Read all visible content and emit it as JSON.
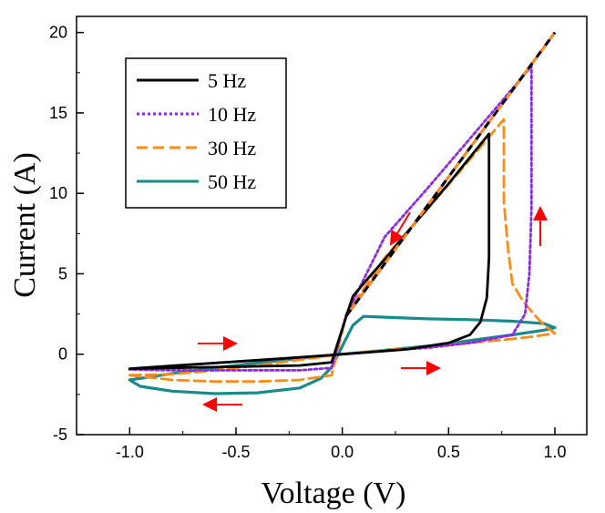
{
  "chart_data": {
    "type": "line",
    "title": "",
    "xlabel": "Voltage (V)",
    "ylabel": "Current (A)",
    "xlim": [
      -1.25,
      1.15
    ],
    "ylim": [
      -5,
      21
    ],
    "xticks": [
      -1.0,
      -0.5,
      0.0,
      0.5,
      1.0
    ],
    "xtick_labels": [
      "-1.0",
      "-0.5",
      "0.0",
      "0.5",
      "1.0"
    ],
    "yticks": [
      -5,
      0,
      5,
      10,
      15,
      20
    ],
    "ytick_labels": [
      "-5",
      "0",
      "5",
      "10",
      "15",
      "20"
    ],
    "grid": false,
    "legend_position": "top-left",
    "series": [
      {
        "name": "5 Hz",
        "color": "#000000",
        "style": "solid",
        "x": [
          -1.0,
          -0.8,
          -0.6,
          -0.4,
          -0.2,
          -0.05,
          0.0,
          0.1,
          0.2,
          0.3,
          0.4,
          0.5,
          0.6,
          0.65,
          0.68,
          0.69,
          0.69,
          0.5,
          0.3,
          0.2,
          0.1,
          0.05,
          0.02,
          -0.05,
          -0.2,
          -0.4,
          -0.6,
          -0.8,
          -1.0
        ],
        "y": [
          -0.9,
          -0.72,
          -0.55,
          -0.37,
          -0.19,
          -0.05,
          0.0,
          0.1,
          0.2,
          0.3,
          0.5,
          0.7,
          1.2,
          2.0,
          3.5,
          6.0,
          13.7,
          10.6,
          7.5,
          5.9,
          4.4,
          3.6,
          2.4,
          -0.5,
          -0.7,
          -0.75,
          -0.8,
          -0.85,
          -0.9
        ]
      },
      {
        "name": "10 Hz",
        "color": "#8a2be2",
        "style": "dotted",
        "x": [
          -1.0,
          -0.8,
          -0.6,
          -0.4,
          -0.2,
          0.0,
          0.2,
          0.4,
          0.6,
          0.8,
          0.86,
          0.88,
          0.89,
          0.89,
          0.8,
          0.6,
          0.4,
          0.2,
          0.02,
          -0.05,
          -0.2,
          -0.4,
          -0.6,
          -0.8,
          -1.0
        ],
        "y": [
          -0.95,
          -0.75,
          -0.55,
          -0.38,
          -0.2,
          0.0,
          0.2,
          0.4,
          0.7,
          1.2,
          2.5,
          5.0,
          9.0,
          17.9,
          16.5,
          13.4,
          10.3,
          7.3,
          2.5,
          -0.85,
          -1.0,
          -1.0,
          -1.0,
          -1.0,
          -0.95
        ]
      },
      {
        "name": "30 Hz",
        "color": "#ff8c1a",
        "style": "dashed",
        "x": [
          -1.0,
          -0.8,
          -0.6,
          -0.4,
          -0.2,
          0.0,
          0.2,
          0.4,
          0.6,
          0.8,
          0.9,
          0.95,
          1.0,
          0.95,
          0.9,
          0.85,
          0.8,
          0.78,
          0.76,
          0.76,
          0.6,
          0.4,
          0.2,
          0.02,
          -0.05,
          -0.2,
          -0.4,
          -0.6,
          -0.8,
          -1.0
        ],
        "y": [
          -1.3,
          -1.25,
          -1.0,
          -0.7,
          -0.35,
          0.0,
          0.25,
          0.45,
          0.7,
          0.95,
          1.1,
          1.2,
          1.3,
          1.8,
          2.5,
          3.3,
          4.4,
          6.5,
          9.5,
          14.6,
          12.1,
          9.0,
          6.0,
          2.5,
          -1.3,
          -1.6,
          -1.7,
          -1.7,
          -1.6,
          -1.3
        ]
      },
      {
        "name": "50 Hz",
        "color": "#1a8a8a",
        "style": "solid",
        "x": [
          -1.0,
          -0.8,
          -0.6,
          -0.4,
          -0.2,
          0.0,
          0.2,
          0.4,
          0.6,
          0.8,
          0.95,
          1.0,
          0.95,
          0.8,
          0.6,
          0.4,
          0.2,
          0.1,
          0.05,
          0.0,
          -0.05,
          -0.1,
          -0.2,
          -0.4,
          -0.6,
          -0.8,
          -0.95,
          -1.0
        ],
        "y": [
          -1.6,
          -1.2,
          -0.85,
          -0.55,
          -0.25,
          0.0,
          0.25,
          0.5,
          0.85,
          1.2,
          1.5,
          1.65,
          1.9,
          2.05,
          2.15,
          2.2,
          2.3,
          2.35,
          1.8,
          0.5,
          -0.8,
          -1.5,
          -2.1,
          -2.4,
          -2.45,
          -2.3,
          -2.0,
          -1.6
        ]
      }
    ],
    "common_line": {
      "name": "",
      "style": "black-purple-orange overlay",
      "x": [
        0.02,
        1.0
      ],
      "y": [
        2.4,
        20.0
      ]
    }
  }
}
